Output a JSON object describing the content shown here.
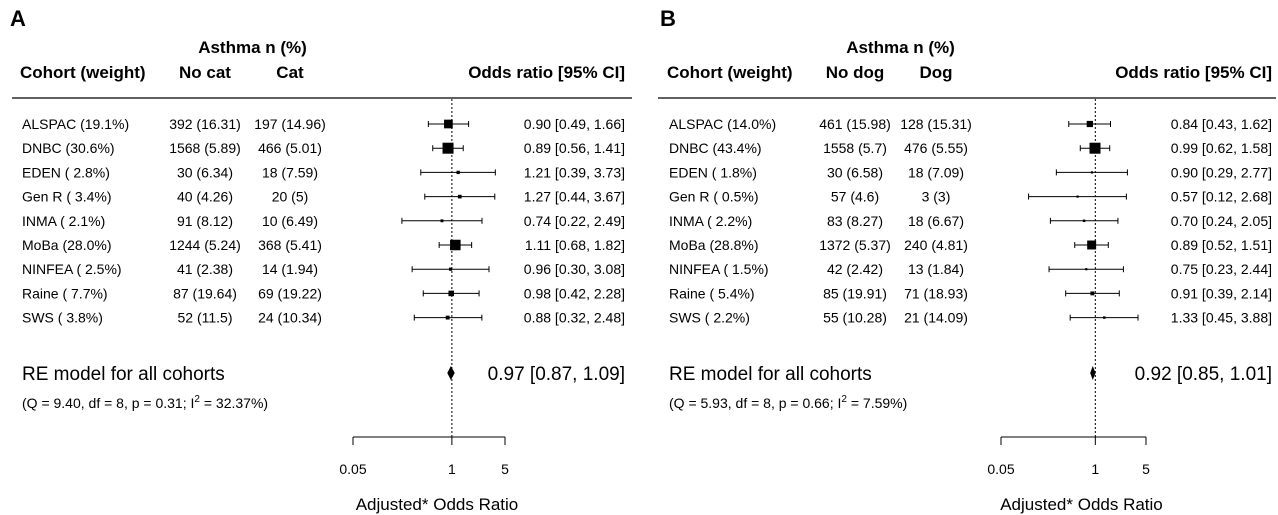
{
  "chart_data": [
    {
      "type": "forest",
      "panel_label": "A",
      "header": {
        "group_label": "Asthma n (%)",
        "col_cohort": "Cohort (weight)",
        "col_exposed_no": "No cat",
        "col_exposed_yes": "Cat",
        "col_effect": "Odds ratio [95% CI]"
      },
      "rows": [
        {
          "cohort": "ALSPAC (19.1%)",
          "no": "392 (16.31)",
          "yes": "197 (14.96)",
          "est": 0.9,
          "lo": 0.49,
          "hi": 1.66,
          "weight": 19.1,
          "ci_text": "0.90 [0.49, 1.66]"
        },
        {
          "cohort": "DNBC (30.6%)",
          "no": "1568 (5.89)",
          "yes": "466 (5.01)",
          "est": 0.89,
          "lo": 0.56,
          "hi": 1.41,
          "weight": 30.6,
          "ci_text": "0.89 [0.56, 1.41]"
        },
        {
          "cohort": "EDEN ( 2.8%)",
          "no": "30 (6.34)",
          "yes": "18 (7.59)",
          "est": 1.21,
          "lo": 0.39,
          "hi": 3.73,
          "weight": 2.8,
          "ci_text": "1.21 [0.39, 3.73]"
        },
        {
          "cohort": "Gen R ( 3.4%)",
          "no": "40 (4.26)",
          "yes": "20 (5)",
          "est": 1.27,
          "lo": 0.44,
          "hi": 3.67,
          "weight": 3.4,
          "ci_text": "1.27 [0.44, 3.67]"
        },
        {
          "cohort": "INMA ( 2.1%)",
          "no": "91 (8.12)",
          "yes": "10 (6.49)",
          "est": 0.74,
          "lo": 0.22,
          "hi": 2.49,
          "weight": 2.1,
          "ci_text": "0.74 [0.22, 2.49]"
        },
        {
          "cohort": "MoBa (28.0%)",
          "no": "1244 (5.24)",
          "yes": "368 (5.41)",
          "est": 1.11,
          "lo": 0.68,
          "hi": 1.82,
          "weight": 28.0,
          "ci_text": "1.11 [0.68, 1.82]"
        },
        {
          "cohort": "NINFEA ( 2.5%)",
          "no": "41 (2.38)",
          "yes": "14 (1.94)",
          "est": 0.96,
          "lo": 0.3,
          "hi": 3.08,
          "weight": 2.5,
          "ci_text": "0.96 [0.30, 3.08]"
        },
        {
          "cohort": "Raine ( 7.7%)",
          "no": "87 (19.64)",
          "yes": "69 (19.22)",
          "est": 0.98,
          "lo": 0.42,
          "hi": 2.28,
          "weight": 7.7,
          "ci_text": "0.98 [0.42, 2.28]"
        },
        {
          "cohort": "SWS ( 3.8%)",
          "no": "52 (11.5)",
          "yes": "24 (10.34)",
          "est": 0.88,
          "lo": 0.32,
          "hi": 2.48,
          "weight": 3.8,
          "ci_text": "0.88 [0.32, 2.48]"
        }
      ],
      "summary": {
        "label": "RE model for all cohorts",
        "est": 0.97,
        "lo": 0.87,
        "hi": 1.09,
        "ci_text": "0.97 [0.87, 1.09]"
      },
      "heterogeneity": {
        "pre": "(Q = 9.40, df = 8, p = 0.31; I",
        "sup": "2",
        "post": " = 32.37%)"
      },
      "x_axis": {
        "scale": "log",
        "range": [
          0.05,
          5
        ],
        "ticks": [
          0.05,
          1,
          5
        ],
        "tick_labels": [
          "0.05",
          "1",
          "5"
        ],
        "label": "Adjusted* Odds Ratio",
        "reference_line": 1
      }
    },
    {
      "type": "forest",
      "panel_label": "B",
      "header": {
        "group_label": "Asthma n (%)",
        "col_cohort": "Cohort (weight)",
        "col_exposed_no": "No dog",
        "col_exposed_yes": "Dog",
        "col_effect": "Odds ratio [95% CI]"
      },
      "rows": [
        {
          "cohort": "ALSPAC (14.0%)",
          "no": "461 (15.98)",
          "yes": "128 (15.31)",
          "est": 0.84,
          "lo": 0.43,
          "hi": 1.62,
          "weight": 14.0,
          "ci_text": "0.84 [0.43, 1.62]"
        },
        {
          "cohort": "DNBC (43.4%)",
          "no": "1558 (5.7)",
          "yes": "476 (5.55)",
          "est": 0.99,
          "lo": 0.62,
          "hi": 1.58,
          "weight": 43.4,
          "ci_text": "0.99 [0.62, 1.58]"
        },
        {
          "cohort": "EDEN ( 1.8%)",
          "no": "30 (6.58)",
          "yes": "18 (7.09)",
          "est": 0.9,
          "lo": 0.29,
          "hi": 2.77,
          "weight": 1.8,
          "ci_text": "0.90 [0.29, 2.77]"
        },
        {
          "cohort": "Gen R ( 0.5%)",
          "no": "57 (4.6)",
          "yes": "3 (3)",
          "est": 0.57,
          "lo": 0.12,
          "hi": 2.68,
          "weight": 0.5,
          "ci_text": "0.57 [0.12, 2.68]"
        },
        {
          "cohort": "INMA ( 2.2%)",
          "no": "83 (8.27)",
          "yes": "18 (6.67)",
          "est": 0.7,
          "lo": 0.24,
          "hi": 2.05,
          "weight": 2.2,
          "ci_text": "0.70 [0.24, 2.05]"
        },
        {
          "cohort": "MoBa (28.8%)",
          "no": "1372 (5.37)",
          "yes": "240 (4.81)",
          "est": 0.89,
          "lo": 0.52,
          "hi": 1.51,
          "weight": 28.8,
          "ci_text": "0.89 [0.52, 1.51]"
        },
        {
          "cohort": "NINFEA ( 1.5%)",
          "no": "42 (2.42)",
          "yes": "13 (1.84)",
          "est": 0.75,
          "lo": 0.23,
          "hi": 2.44,
          "weight": 1.5,
          "ci_text": "0.75 [0.23, 2.44]"
        },
        {
          "cohort": "Raine ( 5.4%)",
          "no": "85 (19.91)",
          "yes": "71 (18.93)",
          "est": 0.91,
          "lo": 0.39,
          "hi": 2.14,
          "weight": 5.4,
          "ci_text": "0.91 [0.39, 2.14]"
        },
        {
          "cohort": "SWS ( 2.2%)",
          "no": "55 (10.28)",
          "yes": "21 (14.09)",
          "est": 1.33,
          "lo": 0.45,
          "hi": 3.88,
          "weight": 2.2,
          "ci_text": "1.33 [0.45, 3.88]"
        }
      ],
      "summary": {
        "label": "RE model for all cohorts",
        "est": 0.92,
        "lo": 0.85,
        "hi": 1.01,
        "ci_text": "0.92 [0.85, 1.01]"
      },
      "heterogeneity": {
        "pre": "(Q = 5.93, df = 8, p = 0.66; I",
        "sup": "2",
        "post": " = 7.59%)"
      },
      "x_axis": {
        "scale": "log",
        "range": [
          0.05,
          5
        ],
        "ticks": [
          0.05,
          1,
          5
        ],
        "tick_labels": [
          "0.05",
          "1",
          "5"
        ],
        "label": "Adjusted* Odds Ratio",
        "reference_line": 1
      }
    }
  ]
}
